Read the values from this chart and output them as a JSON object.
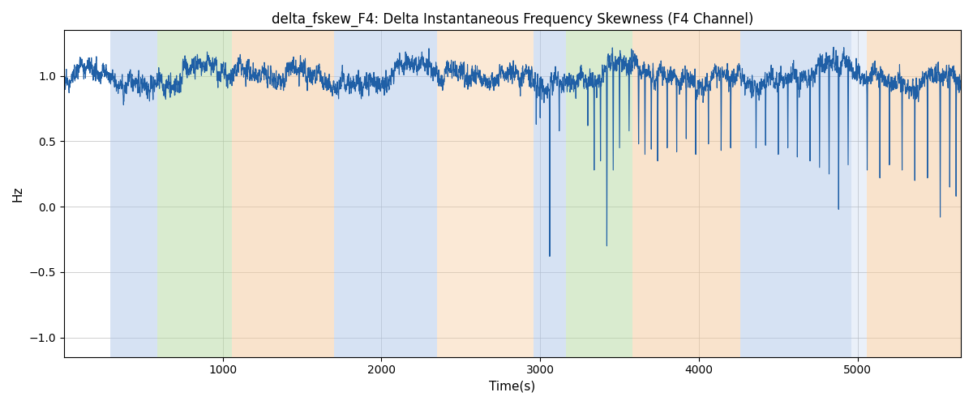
{
  "title": "delta_fskew_F4: Delta Instantaneous Frequency Skewness (F4 Channel)",
  "xlabel": "Time(s)",
  "ylabel": "Hz",
  "xlim": [
    0,
    5650
  ],
  "ylim": [
    -1.15,
    1.35
  ],
  "line_color": "#1f5fa6",
  "line_width": 0.8,
  "grid_color": "#b0b0b0",
  "yticks": [
    -1.0,
    -0.5,
    0.0,
    0.5,
    1.0
  ],
  "xticks": [
    1000,
    2000,
    3000,
    4000,
    5000
  ],
  "seed": 42,
  "bg_bands": [
    {
      "xmin": 290,
      "xmax": 590,
      "color": "#aec6e8",
      "alpha": 0.5
    },
    {
      "xmin": 590,
      "xmax": 1060,
      "color": "#b5d9a0",
      "alpha": 0.5
    },
    {
      "xmin": 1060,
      "xmax": 1700,
      "color": "#f5c99a",
      "alpha": 0.5
    },
    {
      "xmin": 1700,
      "xmax": 2350,
      "color": "#aec6e8",
      "alpha": 0.5
    },
    {
      "xmin": 2350,
      "xmax": 2960,
      "color": "#f5c99a",
      "alpha": 0.4
    },
    {
      "xmin": 2960,
      "xmax": 3160,
      "color": "#aec6e8",
      "alpha": 0.5
    },
    {
      "xmin": 3160,
      "xmax": 3580,
      "color": "#b5d9a0",
      "alpha": 0.5
    },
    {
      "xmin": 3580,
      "xmax": 4260,
      "color": "#f5c99a",
      "alpha": 0.5
    },
    {
      "xmin": 4260,
      "xmax": 4960,
      "color": "#aec6e8",
      "alpha": 0.5
    },
    {
      "xmin": 4960,
      "xmax": 5060,
      "color": "#aec6e8",
      "alpha": 0.25
    },
    {
      "xmin": 5060,
      "xmax": 5650,
      "color": "#f5c99a",
      "alpha": 0.5
    }
  ],
  "n_points": 5650,
  "base_mean": 1.0,
  "deep_spikes": [
    {
      "t": 2975,
      "depth": -0.37
    },
    {
      "t": 3000,
      "depth": -0.32
    },
    {
      "t": 3060,
      "depth": -1.38
    },
    {
      "t": 3120,
      "depth": -0.42
    },
    {
      "t": 3300,
      "depth": -0.38
    },
    {
      "t": 3340,
      "depth": -0.72
    },
    {
      "t": 3380,
      "depth": -0.65
    },
    {
      "t": 3420,
      "depth": -1.3
    },
    {
      "t": 3460,
      "depth": -0.72
    },
    {
      "t": 3500,
      "depth": -0.55
    },
    {
      "t": 3560,
      "depth": -0.42
    },
    {
      "t": 3620,
      "depth": -0.52
    },
    {
      "t": 3660,
      "depth": -0.6
    },
    {
      "t": 3700,
      "depth": -0.56
    },
    {
      "t": 3740,
      "depth": -0.65
    },
    {
      "t": 3800,
      "depth": -0.55
    },
    {
      "t": 3860,
      "depth": -0.58
    },
    {
      "t": 3920,
      "depth": -0.48
    },
    {
      "t": 3980,
      "depth": -0.6
    },
    {
      "t": 4060,
      "depth": -0.52
    },
    {
      "t": 4140,
      "depth": -0.57
    },
    {
      "t": 4200,
      "depth": -0.55
    },
    {
      "t": 4360,
      "depth": -0.55
    },
    {
      "t": 4420,
      "depth": -0.53
    },
    {
      "t": 4500,
      "depth": -0.6
    },
    {
      "t": 4560,
      "depth": -0.55
    },
    {
      "t": 4620,
      "depth": -0.62
    },
    {
      "t": 4700,
      "depth": -0.65
    },
    {
      "t": 4760,
      "depth": -0.7
    },
    {
      "t": 4820,
      "depth": -0.75
    },
    {
      "t": 4880,
      "depth": -1.02
    },
    {
      "t": 4940,
      "depth": -0.68
    },
    {
      "t": 5060,
      "depth": -0.72
    },
    {
      "t": 5140,
      "depth": -0.78
    },
    {
      "t": 5200,
      "depth": -0.68
    },
    {
      "t": 5280,
      "depth": -0.72
    },
    {
      "t": 5360,
      "depth": -0.8
    },
    {
      "t": 5440,
      "depth": -0.78
    },
    {
      "t": 5520,
      "depth": -1.08
    },
    {
      "t": 5580,
      "depth": -0.85
    },
    {
      "t": 5620,
      "depth": -0.92
    }
  ]
}
